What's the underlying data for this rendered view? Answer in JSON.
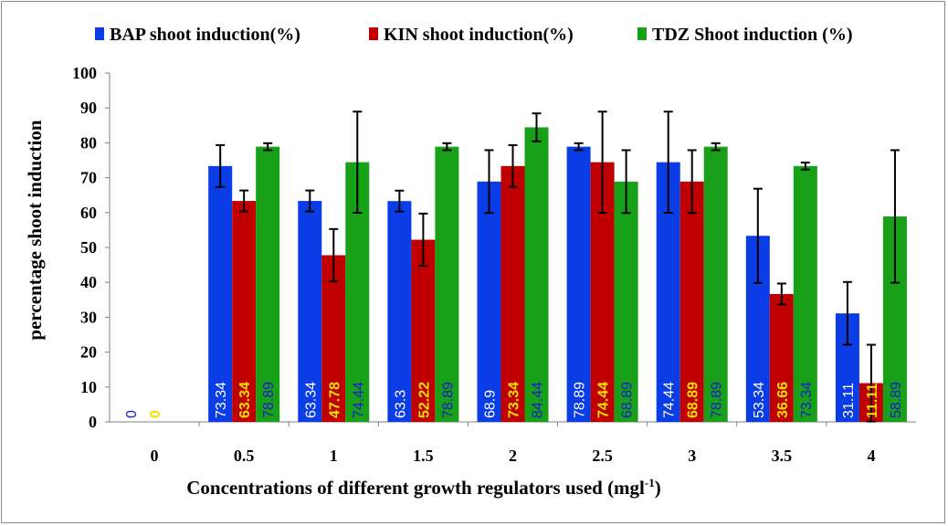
{
  "chart_data": {
    "type": "bar",
    "categories": [
      "0",
      "0.5",
      "1",
      "1.5",
      "2",
      "2.5",
      "3",
      "3.5",
      "4"
    ],
    "series": [
      {
        "name": "BAP shoot induction(%)",
        "color": "#0a3de6",
        "values": [
          0,
          73.34,
          63.34,
          63.3,
          68.9,
          78.89,
          74.44,
          53.34,
          31.11
        ],
        "labels": [
          "0",
          "73.34",
          "63.34",
          "63.3",
          "68.9",
          "78.89",
          "74.44",
          "53.34",
          "31.11"
        ],
        "errors": [
          null,
          6,
          3,
          3,
          9,
          1,
          14.5,
          13.5,
          9
        ],
        "label_colors": [
          "#1a1ad0",
          "#ffffff",
          "#ffffff",
          "#ffffff",
          "#ffffff",
          "#ffffff",
          "#ffffff",
          "#ffffff",
          "#ffffff"
        ]
      },
      {
        "name": "KIN shoot induction(%)",
        "color": "#c00000",
        "values": [
          0,
          63.34,
          47.78,
          52.22,
          73.34,
          74.44,
          68.89,
          36.66,
          11.11
        ],
        "labels": [
          "0",
          "63.34",
          "47.78",
          "52.22",
          "73.34",
          "74.44",
          "68.89",
          "36.66",
          "11.11"
        ],
        "errors": [
          null,
          3,
          7.5,
          7.5,
          6,
          14.5,
          9,
          3,
          11
        ],
        "label_colors": [
          "#f5e000",
          "#f5e000",
          "#f5e000",
          "#f5e000",
          "#f5e000",
          "#f5e000",
          "#f5e000",
          "#f5e000",
          "#f5e000"
        ]
      },
      {
        "name": "TDZ Shoot induction (%)",
        "color": "#18a018",
        "values": [
          null,
          78.89,
          74.44,
          78.89,
          84.44,
          68.89,
          78.89,
          73.34,
          58.89
        ],
        "labels": [
          null,
          "78.89",
          "74.44",
          "78.89",
          "84.44",
          "68.89",
          "78.89",
          "73.34",
          "58.89"
        ],
        "errors": [
          null,
          1,
          14.5,
          1,
          4,
          9,
          1,
          1,
          19
        ],
        "label_colors": [
          null,
          "#1a1ad0",
          "#1a1ad0",
          "#1a1ad0",
          "#1a1ad0",
          "#1a1ad0",
          "#1a1ad0",
          "#1a1ad0",
          "#1a1ad0"
        ]
      }
    ],
    "ylim": [
      0,
      100
    ],
    "yticks": [
      0,
      10,
      20,
      30,
      40,
      50,
      60,
      70,
      80,
      90,
      100
    ],
    "ylabel": "percentage shoot induction",
    "xlabel": "Concentrations of different growth regulators used (mgl",
    "xlabel_sup": "-1",
    "xlabel_end": ")",
    "legend_position": "top",
    "grid": false
  }
}
